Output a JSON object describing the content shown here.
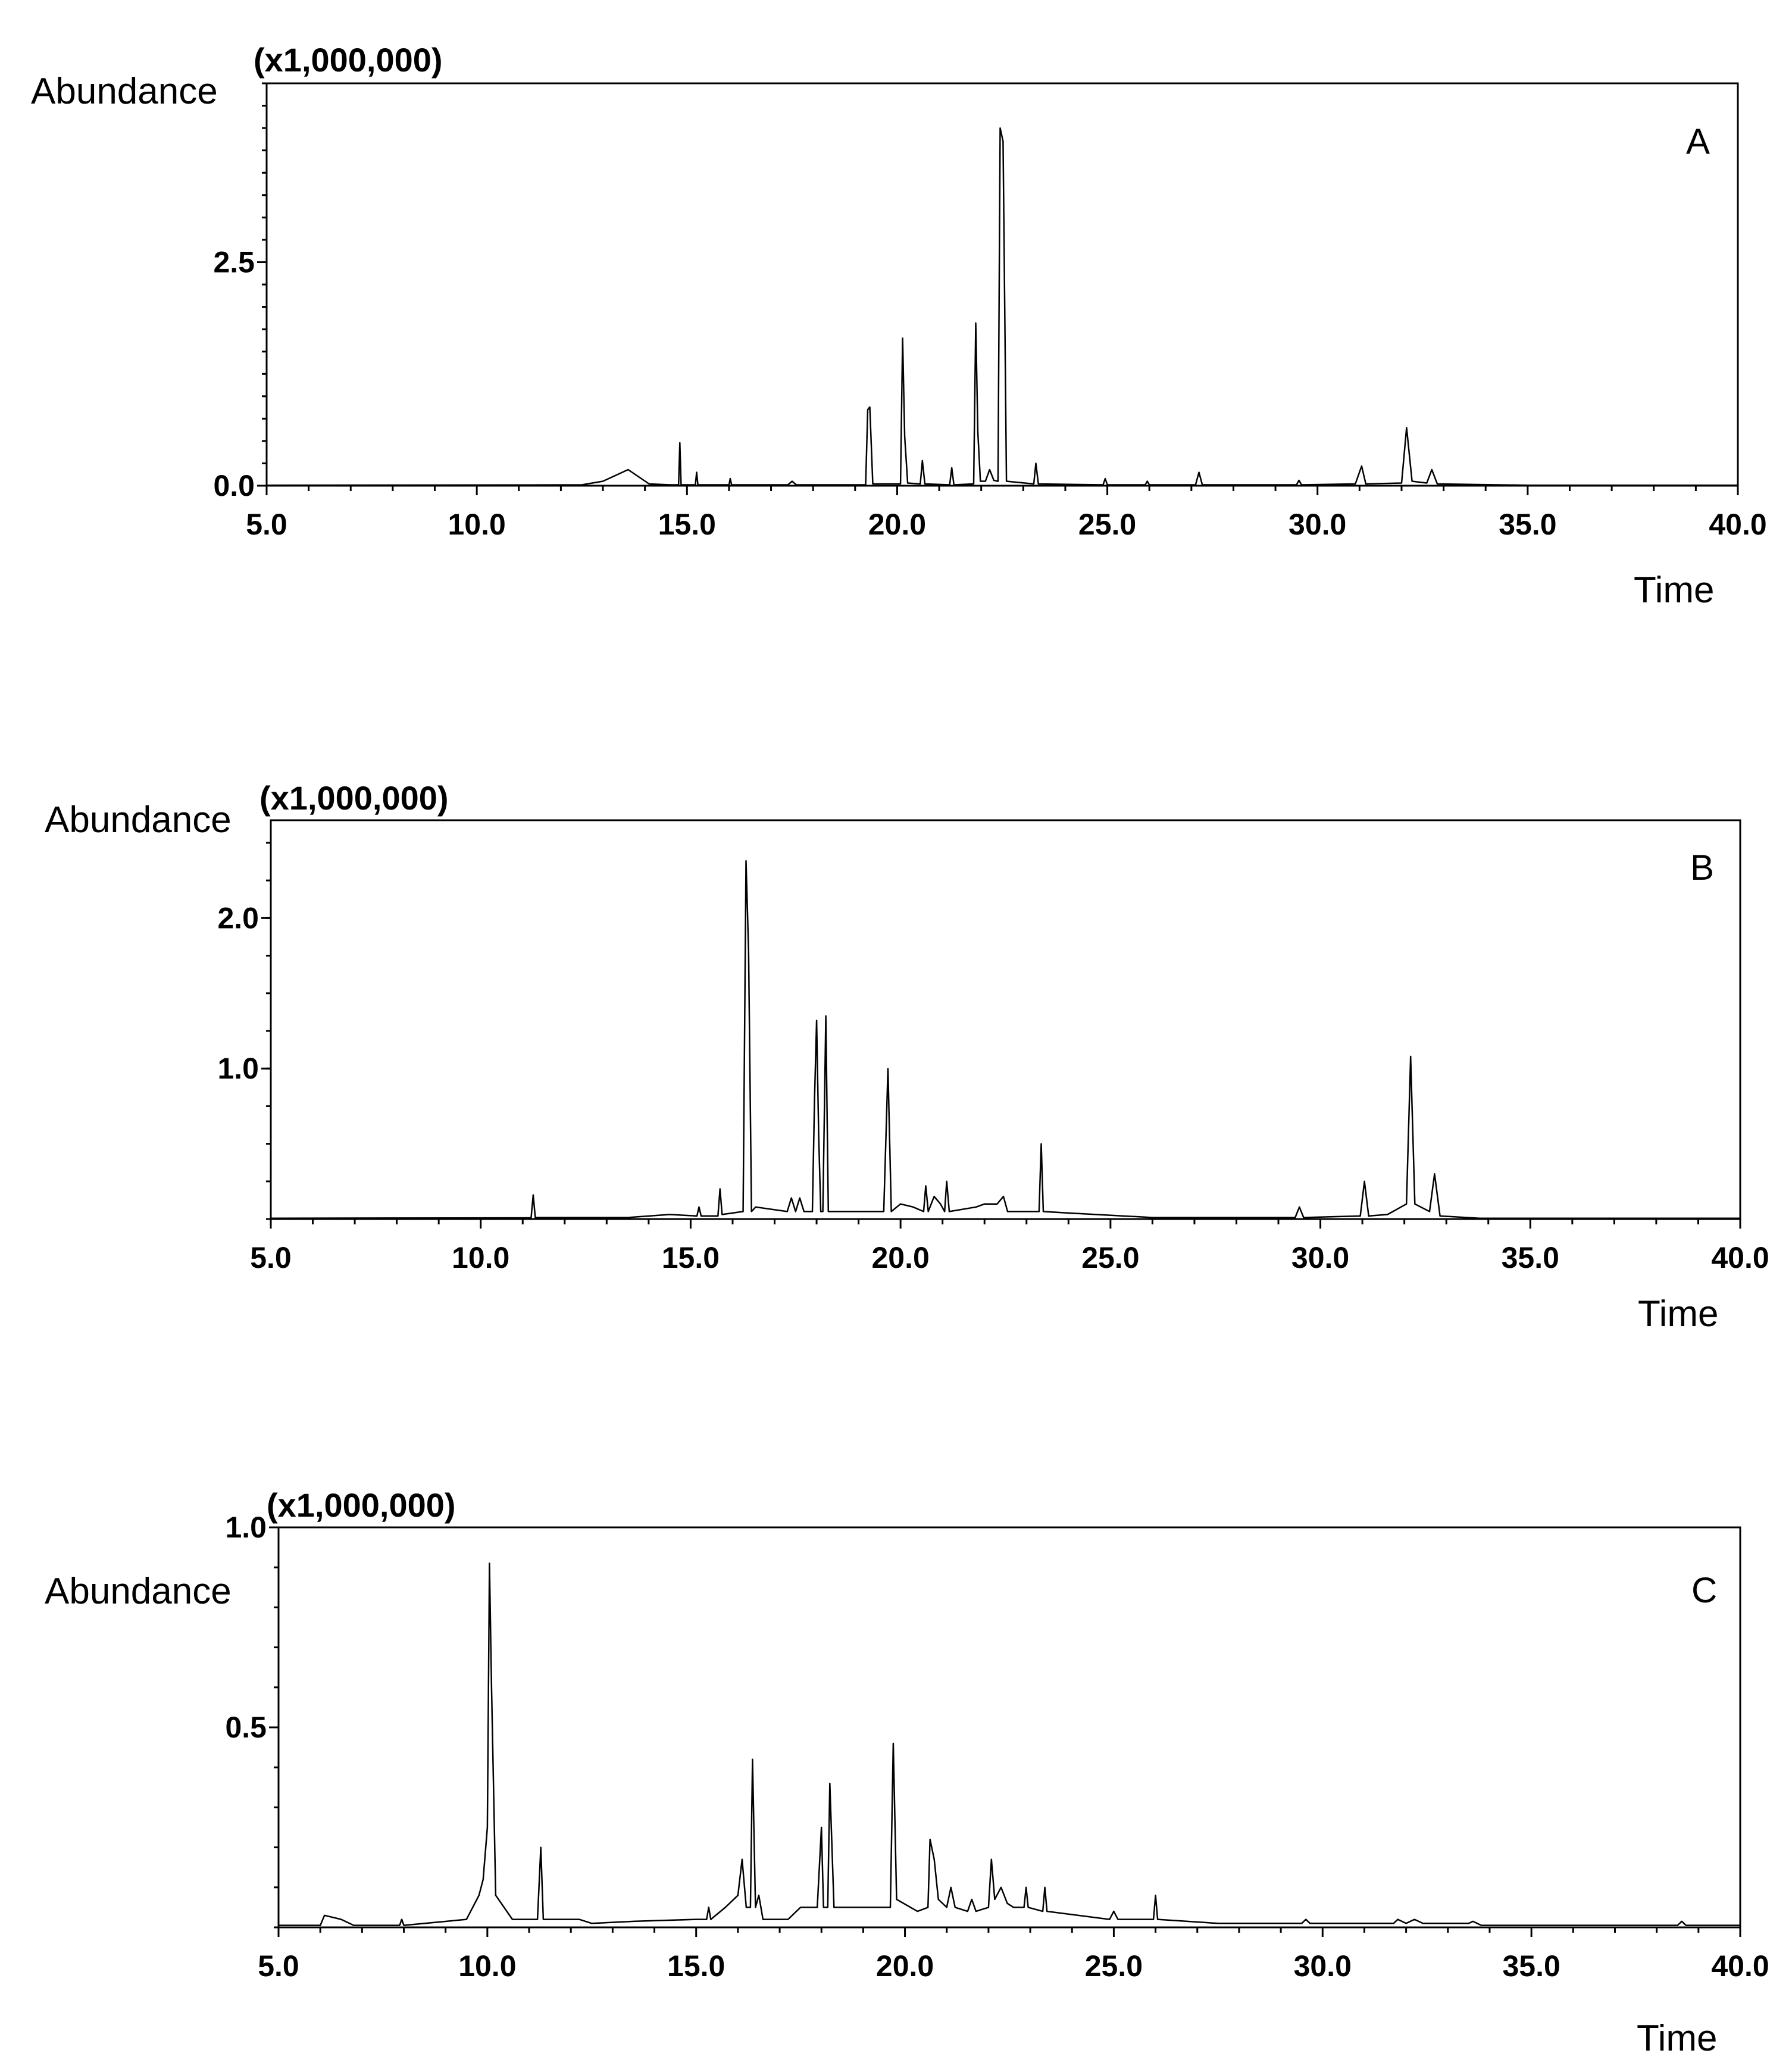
{
  "chart_data": [
    {
      "type": "line",
      "panel_label": "A",
      "y_multiplier": "(x1,000,000)",
      "ylabel": "Abundance",
      "xlabel": "Time",
      "xlim": [
        5.0,
        40.0
      ],
      "ylim": [
        0.0,
        4.5
      ],
      "x_ticks": [
        "5.0",
        "10.0",
        "15.0",
        "20.0",
        "25.0",
        "30.0",
        "35.0",
        "40.0"
      ],
      "y_ticks": [
        {
          "value": 0.0,
          "label": "0.0"
        },
        {
          "value": 2.5,
          "label": "2.5"
        }
      ],
      "grid": false,
      "series": [
        {
          "values": [
            [
              5.0,
              0.005
            ],
            [
              10.8,
              0.008
            ],
            [
              12.5,
              0.01
            ],
            [
              13.0,
              0.05
            ],
            [
              13.6,
              0.18
            ],
            [
              14.1,
              0.02
            ],
            [
              14.6,
              0.01
            ],
            [
              14.8,
              0.01
            ],
            [
              14.83,
              0.48
            ],
            [
              14.86,
              0.01
            ],
            [
              15.2,
              0.01
            ],
            [
              15.23,
              0.15
            ],
            [
              15.26,
              0.01
            ],
            [
              16.0,
              0.01
            ],
            [
              16.03,
              0.08
            ],
            [
              16.06,
              0.01
            ],
            [
              17.4,
              0.01
            ],
            [
              17.5,
              0.05
            ],
            [
              17.6,
              0.01
            ],
            [
              19.25,
              0.01
            ],
            [
              19.3,
              0.85
            ],
            [
              19.35,
              0.88
            ],
            [
              19.42,
              0.02
            ],
            [
              20.08,
              0.02
            ],
            [
              20.13,
              1.65
            ],
            [
              20.18,
              0.55
            ],
            [
              20.25,
              0.03
            ],
            [
              20.55,
              0.02
            ],
            [
              20.6,
              0.28
            ],
            [
              20.66,
              0.02
            ],
            [
              21.25,
              0.01
            ],
            [
              21.3,
              0.2
            ],
            [
              21.35,
              0.01
            ],
            [
              21.82,
              0.02
            ],
            [
              21.87,
              1.82
            ],
            [
              21.92,
              0.6
            ],
            [
              21.98,
              0.05
            ],
            [
              22.1,
              0.05
            ],
            [
              22.2,
              0.18
            ],
            [
              22.3,
              0.06
            ],
            [
              22.4,
              0.05
            ],
            [
              22.45,
              4.0
            ],
            [
              22.52,
              3.85
            ],
            [
              22.6,
              0.05
            ],
            [
              23.25,
              0.02
            ],
            [
              23.3,
              0.25
            ],
            [
              23.36,
              0.02
            ],
            [
              24.9,
              0.01
            ],
            [
              24.95,
              0.08
            ],
            [
              25.0,
              0.01
            ],
            [
              25.9,
              0.01
            ],
            [
              25.95,
              0.05
            ],
            [
              26.0,
              0.01
            ],
            [
              27.1,
              0.01
            ],
            [
              27.18,
              0.15
            ],
            [
              27.26,
              0.01
            ],
            [
              29.5,
              0.01
            ],
            [
              29.56,
              0.06
            ],
            [
              29.62,
              0.01
            ],
            [
              30.9,
              0.02
            ],
            [
              31.05,
              0.22
            ],
            [
              31.15,
              0.02
            ],
            [
              32.0,
              0.03
            ],
            [
              32.12,
              0.65
            ],
            [
              32.25,
              0.05
            ],
            [
              32.6,
              0.03
            ],
            [
              32.72,
              0.18
            ],
            [
              32.85,
              0.02
            ],
            [
              35.0,
              0.005
            ],
            [
              40.0,
              0.005
            ]
          ]
        }
      ]
    },
    {
      "type": "line",
      "panel_label": "B",
      "y_multiplier": "(x1,000,000)",
      "ylabel": "Abundance",
      "xlabel": "Time",
      "xlim": [
        5.0,
        40.0
      ],
      "ylim": [
        0.0,
        2.65
      ],
      "x_ticks": [
        "5.0",
        "10.0",
        "15.0",
        "20.0",
        "25.0",
        "30.0",
        "35.0",
        "40.0"
      ],
      "y_ticks": [
        {
          "value": 1.0,
          "label": "1.0"
        },
        {
          "value": 2.0,
          "label": "2.0"
        }
      ],
      "grid": false,
      "series": [
        {
          "values": [
            [
              5.0,
              0.005
            ],
            [
              11.2,
              0.008
            ],
            [
              11.25,
              0.16
            ],
            [
              11.3,
              0.01
            ],
            [
              13.5,
              0.01
            ],
            [
              14.5,
              0.03
            ],
            [
              15.15,
              0.02
            ],
            [
              15.2,
              0.08
            ],
            [
              15.25,
              0.02
            ],
            [
              15.65,
              0.02
            ],
            [
              15.7,
              0.2
            ],
            [
              15.75,
              0.03
            ],
            [
              16.25,
              0.05
            ],
            [
              16.32,
              2.38
            ],
            [
              16.38,
              1.78
            ],
            [
              16.45,
              0.05
            ],
            [
              16.55,
              0.08
            ],
            [
              17.3,
              0.05
            ],
            [
              17.4,
              0.14
            ],
            [
              17.5,
              0.05
            ],
            [
              17.6,
              0.14
            ],
            [
              17.7,
              0.05
            ],
            [
              17.9,
              0.05
            ],
            [
              17.95,
              0.78
            ],
            [
              18.0,
              1.32
            ],
            [
              18.05,
              0.55
            ],
            [
              18.1,
              0.05
            ],
            [
              18.15,
              0.05
            ],
            [
              18.22,
              1.35
            ],
            [
              18.28,
              0.05
            ],
            [
              19.6,
              0.05
            ],
            [
              19.7,
              1.0
            ],
            [
              19.78,
              0.05
            ],
            [
              20.0,
              0.1
            ],
            [
              20.3,
              0.08
            ],
            [
              20.55,
              0.05
            ],
            [
              20.6,
              0.22
            ],
            [
              20.66,
              0.05
            ],
            [
              20.8,
              0.15
            ],
            [
              20.95,
              0.1
            ],
            [
              21.05,
              0.05
            ],
            [
              21.1,
              0.25
            ],
            [
              21.16,
              0.05
            ],
            [
              21.8,
              0.08
            ],
            [
              22.0,
              0.1
            ],
            [
              22.3,
              0.1
            ],
            [
              22.45,
              0.15
            ],
            [
              22.55,
              0.05
            ],
            [
              23.3,
              0.05
            ],
            [
              23.35,
              0.5
            ],
            [
              23.4,
              0.05
            ],
            [
              24.0,
              0.04
            ],
            [
              26.0,
              0.01
            ],
            [
              29.4,
              0.01
            ],
            [
              29.5,
              0.08
            ],
            [
              29.6,
              0.01
            ],
            [
              30.95,
              0.02
            ],
            [
              31.05,
              0.25
            ],
            [
              31.15,
              0.02
            ],
            [
              31.6,
              0.03
            ],
            [
              32.05,
              0.1
            ],
            [
              32.15,
              1.08
            ],
            [
              32.25,
              0.1
            ],
            [
              32.6,
              0.05
            ],
            [
              32.72,
              0.3
            ],
            [
              32.85,
              0.02
            ],
            [
              33.8,
              0.005
            ],
            [
              40.0,
              0.005
            ]
          ]
        }
      ]
    },
    {
      "type": "line",
      "panel_label": "C",
      "y_multiplier": "(x1,000,000)",
      "ylabel": "Abundance",
      "xlabel": "Time",
      "xlim": [
        5.0,
        40.0
      ],
      "ylim": [
        0.0,
        1.0
      ],
      "x_ticks": [
        "5.0",
        "10.0",
        "15.0",
        "20.0",
        "25.0",
        "30.0",
        "35.0",
        "40.0"
      ],
      "y_ticks": [
        {
          "value": 0.5,
          "label": "0.5"
        },
        {
          "value": 1.0,
          "label": "1.0"
        }
      ],
      "grid": false,
      "series": [
        {
          "values": [
            [
              5.0,
              0.005
            ],
            [
              6.0,
              0.005
            ],
            [
              6.1,
              0.03
            ],
            [
              6.5,
              0.02
            ],
            [
              6.8,
              0.005
            ],
            [
              7.9,
              0.005
            ],
            [
              7.95,
              0.02
            ],
            [
              8.0,
              0.005
            ],
            [
              9.5,
              0.02
            ],
            [
              9.8,
              0.08
            ],
            [
              9.9,
              0.12
            ],
            [
              10.0,
              0.25
            ],
            [
              10.05,
              0.91
            ],
            [
              10.1,
              0.6
            ],
            [
              10.2,
              0.08
            ],
            [
              10.6,
              0.02
            ],
            [
              11.2,
              0.02
            ],
            [
              11.28,
              0.2
            ],
            [
              11.34,
              0.02
            ],
            [
              12.2,
              0.02
            ],
            [
              12.5,
              0.01
            ],
            [
              13.5,
              0.015
            ],
            [
              15.0,
              0.02
            ],
            [
              15.25,
              0.02
            ],
            [
              15.3,
              0.05
            ],
            [
              15.35,
              0.02
            ],
            [
              15.7,
              0.05
            ],
            [
              16.0,
              0.08
            ],
            [
              16.1,
              0.17
            ],
            [
              16.2,
              0.05
            ],
            [
              16.3,
              0.05
            ],
            [
              16.35,
              0.42
            ],
            [
              16.42,
              0.05
            ],
            [
              16.5,
              0.08
            ],
            [
              16.6,
              0.02
            ],
            [
              17.2,
              0.02
            ],
            [
              17.5,
              0.05
            ],
            [
              17.7,
              0.05
            ],
            [
              17.9,
              0.05
            ],
            [
              18.0,
              0.25
            ],
            [
              18.05,
              0.05
            ],
            [
              18.15,
              0.05
            ],
            [
              18.2,
              0.36
            ],
            [
              18.3,
              0.05
            ],
            [
              19.5,
              0.05
            ],
            [
              19.65,
              0.05
            ],
            [
              19.72,
              0.46
            ],
            [
              19.8,
              0.07
            ],
            [
              20.3,
              0.04
            ],
            [
              20.55,
              0.05
            ],
            [
              20.6,
              0.22
            ],
            [
              20.7,
              0.17
            ],
            [
              20.8,
              0.07
            ],
            [
              21.0,
              0.05
            ],
            [
              21.1,
              0.1
            ],
            [
              21.2,
              0.05
            ],
            [
              21.5,
              0.04
            ],
            [
              21.6,
              0.07
            ],
            [
              21.7,
              0.04
            ],
            [
              22.0,
              0.05
            ],
            [
              22.07,
              0.17
            ],
            [
              22.15,
              0.07
            ],
            [
              22.3,
              0.1
            ],
            [
              22.45,
              0.06
            ],
            [
              22.6,
              0.05
            ],
            [
              22.85,
              0.05
            ],
            [
              22.9,
              0.1
            ],
            [
              22.95,
              0.05
            ],
            [
              23.3,
              0.04
            ],
            [
              23.35,
              0.1
            ],
            [
              23.4,
              0.04
            ],
            [
              24.9,
              0.02
            ],
            [
              25.0,
              0.04
            ],
            [
              25.1,
              0.02
            ],
            [
              25.95,
              0.02
            ],
            [
              26.0,
              0.08
            ],
            [
              26.05,
              0.02
            ],
            [
              27.5,
              0.01
            ],
            [
              29.5,
              0.01
            ],
            [
              29.6,
              0.02
            ],
            [
              29.7,
              0.01
            ],
            [
              31.7,
              0.01
            ],
            [
              31.8,
              0.02
            ],
            [
              32.0,
              0.01
            ],
            [
              32.2,
              0.02
            ],
            [
              32.4,
              0.01
            ],
            [
              33.5,
              0.01
            ],
            [
              33.6,
              0.015
            ],
            [
              33.8,
              0.005
            ],
            [
              38.5,
              0.005
            ],
            [
              38.6,
              0.015
            ],
            [
              38.7,
              0.005
            ],
            [
              40.0,
              0.005
            ]
          ]
        }
      ]
    }
  ]
}
